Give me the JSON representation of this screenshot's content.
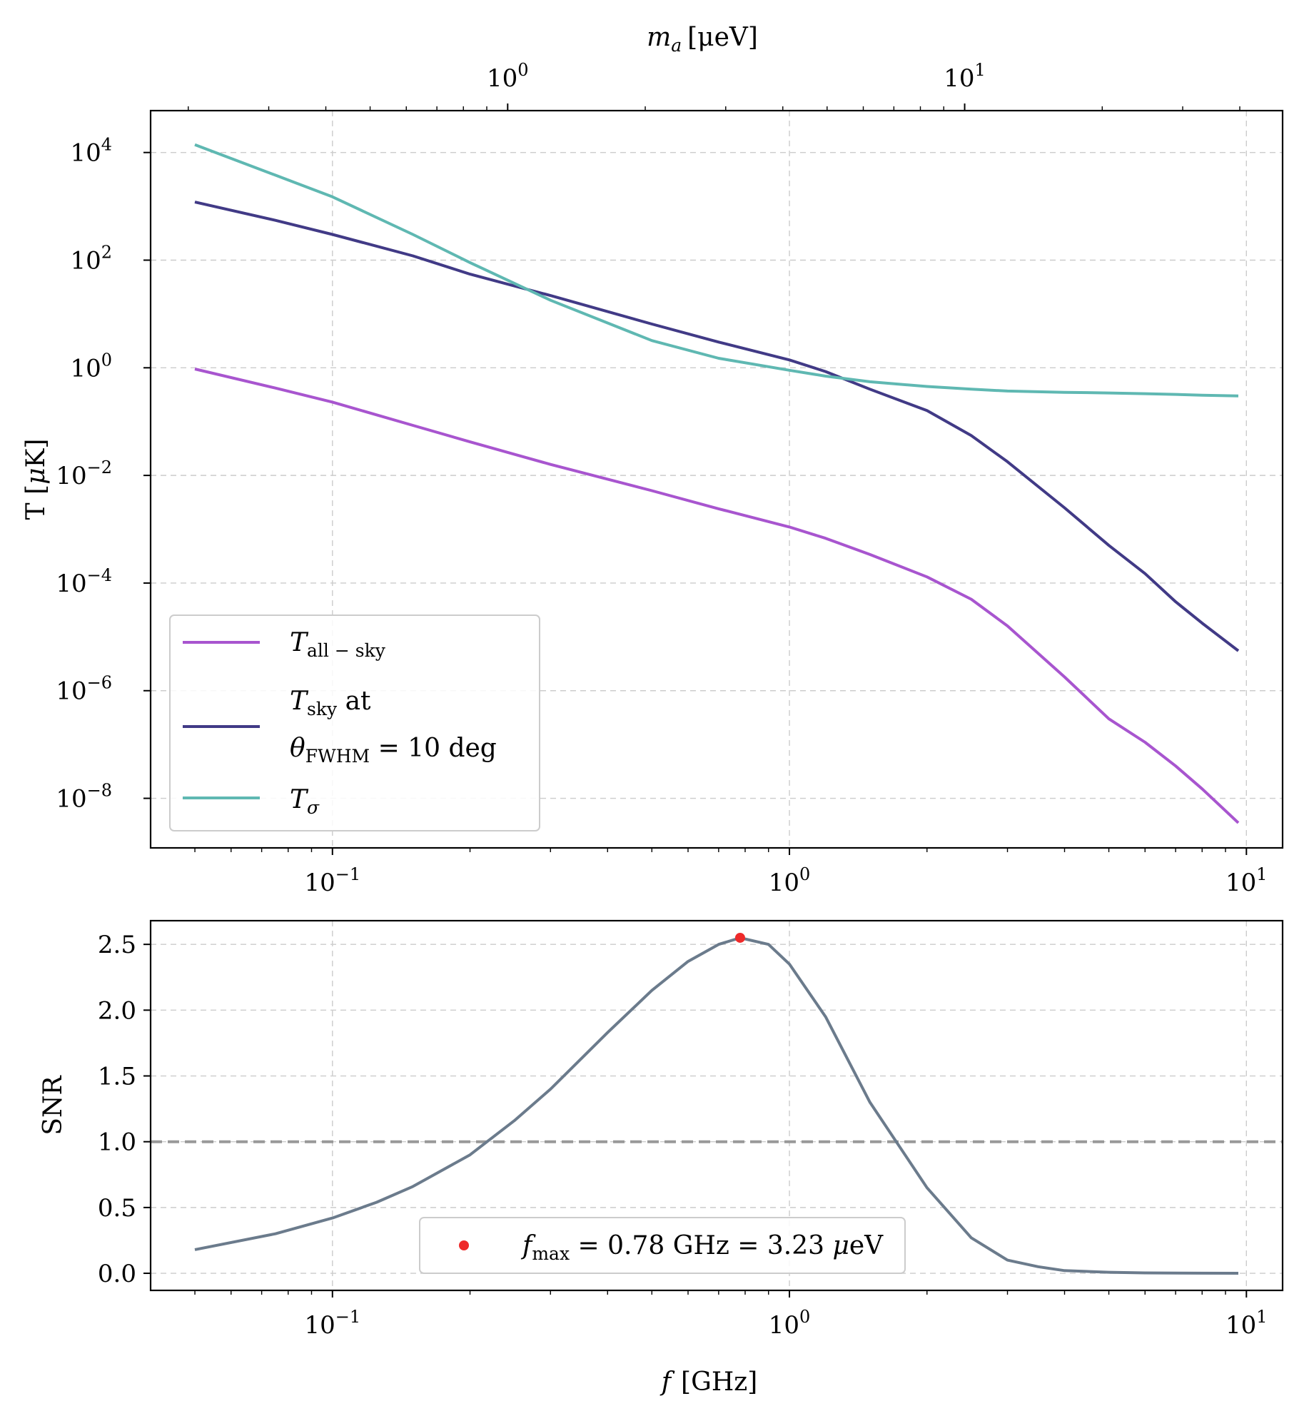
{
  "chart_data": [
    {
      "type": "line",
      "xscale": "log",
      "yscale": "log",
      "xlim": [
        0.04,
        12
      ],
      "ylim": [
        1.2e-09,
        60000.0
      ],
      "ylabel_text": "T [",
      "ylabel_mu": "μ",
      "ylabel_unit": "K]",
      "top_axis": {
        "label_symbol": "m",
        "label_sub": "a",
        "label_unit": "[μeV]",
        "ticks": [
          {
            "base": "10",
            "exp": "0",
            "freq": 0.2418
          },
          {
            "base": "10",
            "exp": "1",
            "freq": 2.418
          }
        ]
      },
      "x_ticks": [
        {
          "value": 0.1,
          "base": "10",
          "exp": "−1"
        },
        {
          "value": 1,
          "base": "10",
          "exp": "0"
        },
        {
          "value": 10,
          "base": "10",
          "exp": "1"
        }
      ],
      "y_ticks": [
        {
          "value": 10000.0,
          "base": "10",
          "exp": "4"
        },
        {
          "value": 100.0,
          "base": "10",
          "exp": "2"
        },
        {
          "value": 1,
          "base": "10",
          "exp": "0"
        },
        {
          "value": 0.01,
          "base": "10",
          "exp": "−2"
        },
        {
          "value": 0.0001,
          "base": "10",
          "exp": "−4"
        },
        {
          "value": 1e-06,
          "base": "10",
          "exp": "−6"
        },
        {
          "value": 1e-08,
          "base": "10",
          "exp": "−8"
        }
      ],
      "x": [
        0.05,
        0.075,
        0.1,
        0.15,
        0.2,
        0.3,
        0.5,
        0.7,
        1.0,
        1.2,
        1.5,
        2.0,
        2.5,
        3.0,
        4.0,
        5.0,
        6.0,
        7.0,
        8.0,
        9.6
      ],
      "series": [
        {
          "name": "T_all-sky",
          "legend": {
            "symbol": "T",
            "sub": "all − sky"
          },
          "color": "#a855cf",
          "values": [
            0.95,
            0.42,
            0.23,
            0.085,
            0.042,
            0.016,
            0.0052,
            0.0024,
            0.0011,
            0.00068,
            0.00034,
            0.00013,
            5e-05,
            1.6e-05,
            1.8e-06,
            3e-07,
            1.1e-07,
            4e-08,
            1.5e-08,
            3.5e-09
          ]
        },
        {
          "name": "T_sky at θ_FWHM = 10 deg",
          "legend": {
            "symbol": "T",
            "sub": "sky",
            "rest": " at",
            "line2_symbol": "θ",
            "line2_sub": "FWHM",
            "line2_rest": " = 10 deg"
          },
          "color": "#413a86",
          "values": [
            1200,
            550,
            300,
            120,
            55,
            22,
            6.5,
            3.0,
            1.4,
            0.85,
            0.4,
            0.16,
            0.055,
            0.018,
            0.0025,
            0.0005,
            0.00015,
            4.5e-05,
            1.8e-05,
            5.5e-06
          ]
        },
        {
          "name": "T_σ",
          "legend": {
            "symbol": "T",
            "sub": "σ"
          },
          "color": "#5fb8b2",
          "values": [
            14000,
            3800,
            1500,
            300,
            90,
            18,
            3.2,
            1.5,
            0.9,
            0.7,
            0.55,
            0.45,
            0.4,
            0.37,
            0.35,
            0.34,
            0.33,
            0.32,
            0.31,
            0.3
          ]
        }
      ]
    },
    {
      "type": "line",
      "xscale": "log",
      "yscale": "linear",
      "xlim": [
        0.04,
        12
      ],
      "ylim": [
        -0.13,
        2.68
      ],
      "ylabel": "SNR",
      "xlabel_symbol": "f",
      "xlabel_unit": "[GHz]",
      "x_ticks": [
        {
          "value": 0.1,
          "base": "10",
          "exp": "−1"
        },
        {
          "value": 1,
          "base": "10",
          "exp": "0"
        },
        {
          "value": 10,
          "base": "10",
          "exp": "1"
        }
      ],
      "y_ticks": [
        "0.0",
        "0.5",
        "1.0",
        "1.5",
        "2.0",
        "2.5"
      ],
      "x": [
        0.05,
        0.075,
        0.1,
        0.125,
        0.15,
        0.2,
        0.25,
        0.3,
        0.4,
        0.5,
        0.6,
        0.7,
        0.78,
        0.9,
        1.0,
        1.2,
        1.5,
        2.0,
        2.5,
        3.0,
        3.5,
        4.0,
        5.0,
        6.0,
        8.0,
        9.6
      ],
      "series": [
        {
          "name": "SNR",
          "color": "#6b7b8c",
          "values": [
            0.18,
            0.3,
            0.42,
            0.54,
            0.66,
            0.9,
            1.16,
            1.4,
            1.83,
            2.15,
            2.37,
            2.5,
            2.55,
            2.5,
            2.35,
            1.95,
            1.3,
            0.65,
            0.27,
            0.1,
            0.05,
            0.02,
            0.008,
            0.003,
            0.001,
            0.0
          ]
        }
      ],
      "threshold": {
        "value": 1.0,
        "color": "#999999"
      },
      "max_point": {
        "x": 0.78,
        "y": 2.55,
        "color": "#ee2a2a"
      },
      "legend": {
        "symbol": "f",
        "sub": "max",
        "text": " = 0.78 GHz = 3.23 ",
        "mu": "μ",
        "unit": "eV"
      }
    }
  ]
}
